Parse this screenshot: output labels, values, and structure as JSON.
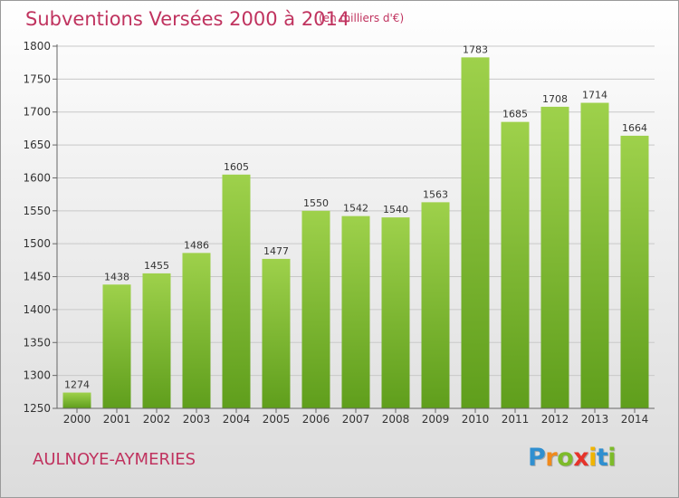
{
  "chart_data": {
    "type": "bar",
    "title": "Subventions Versées 2000 à 2014",
    "subtitle": "(en milliers d'€)",
    "categories": [
      "2000",
      "2001",
      "2002",
      "2003",
      "2004",
      "2005",
      "2006",
      "2007",
      "2008",
      "2009",
      "2010",
      "2011",
      "2012",
      "2013",
      "2014"
    ],
    "values": [
      1274,
      1438,
      1455,
      1486,
      1605,
      1477,
      1550,
      1542,
      1540,
      1563,
      1783,
      1685,
      1708,
      1714,
      1664
    ],
    "ylim": [
      1250,
      1800
    ],
    "yticks": [
      1250,
      1300,
      1350,
      1400,
      1450,
      1500,
      1550,
      1600,
      1650,
      1700,
      1750,
      1800
    ],
    "grid": true,
    "bar_color": "#7fbf2c"
  },
  "footer": {
    "city": "AULNOYE-AYMERIES"
  },
  "logo": {
    "letters": [
      "P",
      "r",
      "o",
      "x",
      "i",
      "t",
      "i"
    ],
    "colors": [
      "#2f8fd0",
      "#f08a1c",
      "#7dbb2a",
      "#e6332a",
      "#f0b400",
      "#2f8fd0",
      "#7dbb2a"
    ]
  }
}
